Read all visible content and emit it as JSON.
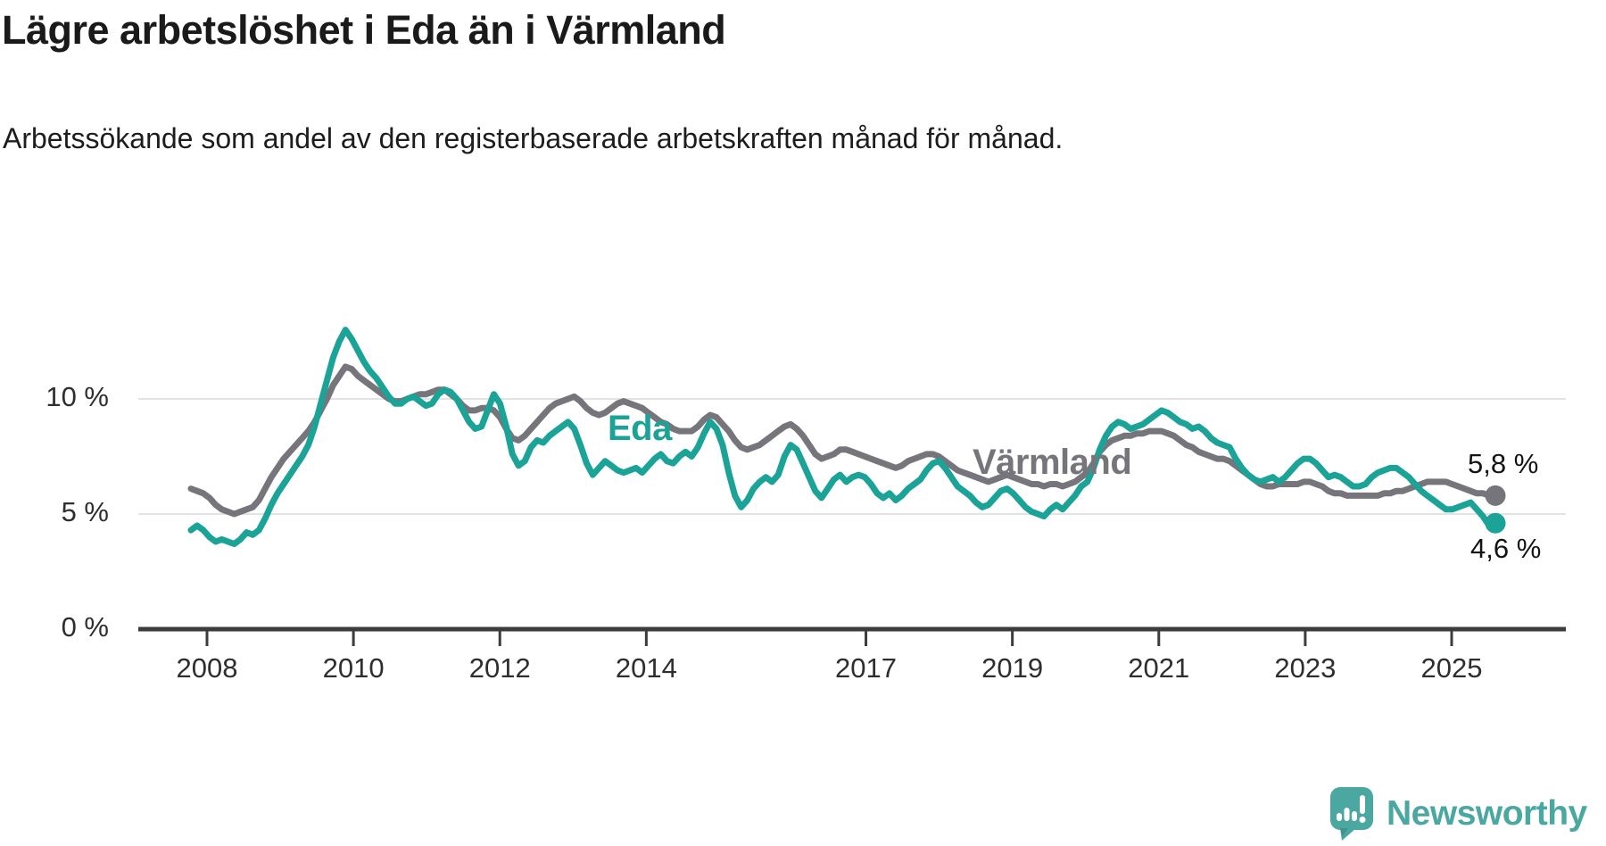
{
  "page": {
    "language": "sv",
    "background": "#ffffff"
  },
  "header": {
    "title": "Lägre arbetslöshet i Eda än i Värmland",
    "subtitle": "Arbetssökande som andel av den registerbaserade arbetskraften månad för månad."
  },
  "chart_data": {
    "type": "line",
    "title": "Lägre arbetslöshet i Eda än i Värmland",
    "subtitle": "Arbetssökande som andel av den registerbaserade arbetskraften månad för månad.",
    "x_unit": "month",
    "x_start": "2008-01",
    "x_end": "2025-08",
    "x_ticks": [
      {
        "label": "2008",
        "year": 2008
      },
      {
        "label": "2010",
        "year": 2010
      },
      {
        "label": "2012",
        "year": 2012
      },
      {
        "label": "2014",
        "year": 2014
      },
      {
        "label": "2017",
        "year": 2017
      },
      {
        "label": "2019",
        "year": 2019
      },
      {
        "label": "2021",
        "year": 2021
      },
      {
        "label": "2023",
        "year": 2023
      },
      {
        "label": "2025",
        "year": 2025
      }
    ],
    "y_ticks": [
      {
        "label": "0 %",
        "value": 0
      },
      {
        "label": "5 %",
        "value": 5
      },
      {
        "label": "10 %",
        "value": 10
      }
    ],
    "ylim": [
      0,
      13.5
    ],
    "grid": "horizontal",
    "legend": "inline-labels",
    "series": [
      {
        "name": "Värmland",
        "color": "#76757B",
        "end_label": "5,8 %",
        "last_value": 5.8,
        "values": [
          6.1,
          6.0,
          5.9,
          5.7,
          5.4,
          5.2,
          5.1,
          5.0,
          5.1,
          5.2,
          5.3,
          5.6,
          6.1,
          6.6,
          7.0,
          7.4,
          7.7,
          8.0,
          8.3,
          8.6,
          9.0,
          9.5,
          10.0,
          10.6,
          11.0,
          11.4,
          11.3,
          11.0,
          10.8,
          10.6,
          10.4,
          10.2,
          10.0,
          9.9,
          9.9,
          10.0,
          10.1,
          10.2,
          10.2,
          10.3,
          10.4,
          10.4,
          10.2,
          10.0,
          9.7,
          9.5,
          9.5,
          9.6,
          9.6,
          9.5,
          9.2,
          8.7,
          8.3,
          8.2,
          8.4,
          8.7,
          9.0,
          9.3,
          9.6,
          9.8,
          9.9,
          10.0,
          10.1,
          9.9,
          9.6,
          9.4,
          9.3,
          9.4,
          9.6,
          9.8,
          9.9,
          9.8,
          9.7,
          9.6,
          9.4,
          9.2,
          9.0,
          8.9,
          8.7,
          8.6,
          8.6,
          8.6,
          8.8,
          9.1,
          9.3,
          9.2,
          8.9,
          8.6,
          8.2,
          7.9,
          7.8,
          7.9,
          8.0,
          8.2,
          8.4,
          8.6,
          8.8,
          8.9,
          8.7,
          8.4,
          8.0,
          7.6,
          7.4,
          7.5,
          7.6,
          7.8,
          7.8,
          7.7,
          7.6,
          7.5,
          7.4,
          7.3,
          7.2,
          7.1,
          7.0,
          7.1,
          7.3,
          7.4,
          7.5,
          7.6,
          7.6,
          7.5,
          7.3,
          7.1,
          6.9,
          6.8,
          6.7,
          6.6,
          6.5,
          6.4,
          6.5,
          6.6,
          6.7,
          6.6,
          6.5,
          6.4,
          6.3,
          6.3,
          6.2,
          6.3,
          6.3,
          6.2,
          6.3,
          6.4,
          6.6,
          6.8,
          7.2,
          7.7,
          8.0,
          8.2,
          8.3,
          8.4,
          8.4,
          8.5,
          8.5,
          8.6,
          8.6,
          8.6,
          8.5,
          8.4,
          8.2,
          8.0,
          7.9,
          7.7,
          7.6,
          7.5,
          7.4,
          7.4,
          7.3,
          7.1,
          6.9,
          6.7,
          6.5,
          6.3,
          6.2,
          6.2,
          6.3,
          6.3,
          6.3,
          6.3,
          6.4,
          6.4,
          6.3,
          6.2,
          6.0,
          5.9,
          5.9,
          5.8,
          5.8,
          5.8,
          5.8,
          5.8,
          5.8,
          5.9,
          5.9,
          6.0,
          6.0,
          6.1,
          6.2,
          6.3,
          6.4,
          6.4,
          6.4,
          6.4,
          6.3,
          6.2,
          6.1,
          6.0,
          5.9,
          5.9,
          5.8,
          5.8
        ]
      },
      {
        "name": "Eda",
        "color": "#1AA396",
        "end_label": "4,6 %",
        "last_value": 4.6,
        "values": [
          4.3,
          4.5,
          4.3,
          4.0,
          3.8,
          3.9,
          3.8,
          3.7,
          3.9,
          4.2,
          4.1,
          4.3,
          4.8,
          5.4,
          5.9,
          6.3,
          6.7,
          7.1,
          7.5,
          8.0,
          8.8,
          9.8,
          10.8,
          11.8,
          12.5,
          13.0,
          12.6,
          12.1,
          11.6,
          11.2,
          10.9,
          10.5,
          10.1,
          9.8,
          9.8,
          10.0,
          10.1,
          9.9,
          9.7,
          9.8,
          10.2,
          10.4,
          10.3,
          10.0,
          9.5,
          9.0,
          8.7,
          8.8,
          9.5,
          10.2,
          9.8,
          8.8,
          7.6,
          7.1,
          7.3,
          7.9,
          8.2,
          8.1,
          8.4,
          8.6,
          8.8,
          9.0,
          8.7,
          8.0,
          7.2,
          6.7,
          7.0,
          7.3,
          7.1,
          6.9,
          6.8,
          6.9,
          7.0,
          6.8,
          7.1,
          7.4,
          7.6,
          7.3,
          7.2,
          7.5,
          7.7,
          7.5,
          7.9,
          8.5,
          9.0,
          8.7,
          8.0,
          6.8,
          5.8,
          5.3,
          5.6,
          6.1,
          6.4,
          6.6,
          6.4,
          6.7,
          7.5,
          8.0,
          7.8,
          7.2,
          6.6,
          6.0,
          5.7,
          6.1,
          6.5,
          6.7,
          6.4,
          6.6,
          6.7,
          6.6,
          6.3,
          5.9,
          5.7,
          5.9,
          5.6,
          5.8,
          6.1,
          6.3,
          6.5,
          6.9,
          7.2,
          7.3,
          7.0,
          6.6,
          6.2,
          6.0,
          5.8,
          5.5,
          5.3,
          5.4,
          5.7,
          6.0,
          6.1,
          5.9,
          5.6,
          5.3,
          5.1,
          5.0,
          4.9,
          5.2,
          5.4,
          5.2,
          5.5,
          5.8,
          6.2,
          6.4,
          7.0,
          7.8,
          8.4,
          8.8,
          9.0,
          8.9,
          8.7,
          8.8,
          8.9,
          9.1,
          9.3,
          9.5,
          9.4,
          9.2,
          9.0,
          8.9,
          8.7,
          8.8,
          8.6,
          8.3,
          8.1,
          8.0,
          7.9,
          7.4,
          7.0,
          6.7,
          6.5,
          6.4,
          6.5,
          6.6,
          6.4,
          6.6,
          6.9,
          7.2,
          7.4,
          7.4,
          7.2,
          6.9,
          6.6,
          6.7,
          6.6,
          6.4,
          6.2,
          6.2,
          6.3,
          6.6,
          6.8,
          6.9,
          7.0,
          7.0,
          6.8,
          6.6,
          6.3,
          6.0,
          5.8,
          5.6,
          5.4,
          5.2,
          5.2,
          5.3,
          5.4,
          5.5,
          5.2,
          4.9,
          4.5,
          4.6
        ]
      }
    ]
  },
  "annotations": {
    "eda_series_label": "Eda",
    "varmland_series_label": "Värmland",
    "varmland_end_label": "5,8 %",
    "eda_end_label": "4,6 %"
  },
  "branding": {
    "wordmark": "Newsworthy",
    "color": "#4BA8A0",
    "icon": "bar-chart-speech-bubble-icon"
  }
}
